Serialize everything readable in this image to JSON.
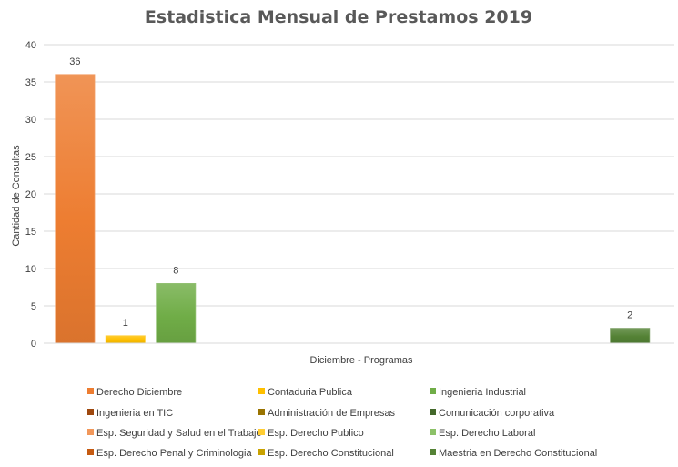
{
  "chart_data": {
    "type": "bar",
    "title": "Estadistica Mensual de Prestamos 2019",
    "xlabel": "Diciembre - Programas",
    "ylabel": "Cantidad de Consultas",
    "ylim": [
      0,
      40
    ],
    "ytick_step": 5,
    "grid": true,
    "legend_position": "bottom",
    "categories": [
      "Diciembre - Programas"
    ],
    "series": [
      {
        "name": "Derecho Diciembre",
        "value": 36,
        "color": "#ED7D31"
      },
      {
        "name": "Contaduria Publica",
        "value": 1,
        "color": "#FFC000"
      },
      {
        "name": "Ingenieria Industrial",
        "value": 8,
        "color": "#70AD47"
      },
      {
        "name": "Ingenieria en TIC",
        "value": 0,
        "color": "#9E480E"
      },
      {
        "name": "Administración de Empresas",
        "value": 0,
        "color": "#997300"
      },
      {
        "name": "Comunicación corporativa",
        "value": 0,
        "color": "#43682B"
      },
      {
        "name": "Esp. Seguridad y Salud en el Trabajo",
        "value": 0,
        "color": "#F1975A"
      },
      {
        "name": "Esp. Derecho Publico",
        "value": 0,
        "color": "#FFCD33"
      },
      {
        "name": "Esp. Derecho Laboral",
        "value": 0,
        "color": "#8CC168"
      },
      {
        "name": "Esp. Derecho Penal y Criminologia",
        "value": 0,
        "color": "#C55A11"
      },
      {
        "name": "Esp. Derecho Constitucional",
        "value": 0,
        "color": "#C9A200"
      },
      {
        "name": "Maestria en Derecho Constitucional",
        "value": 2,
        "color": "#548235"
      }
    ]
  }
}
